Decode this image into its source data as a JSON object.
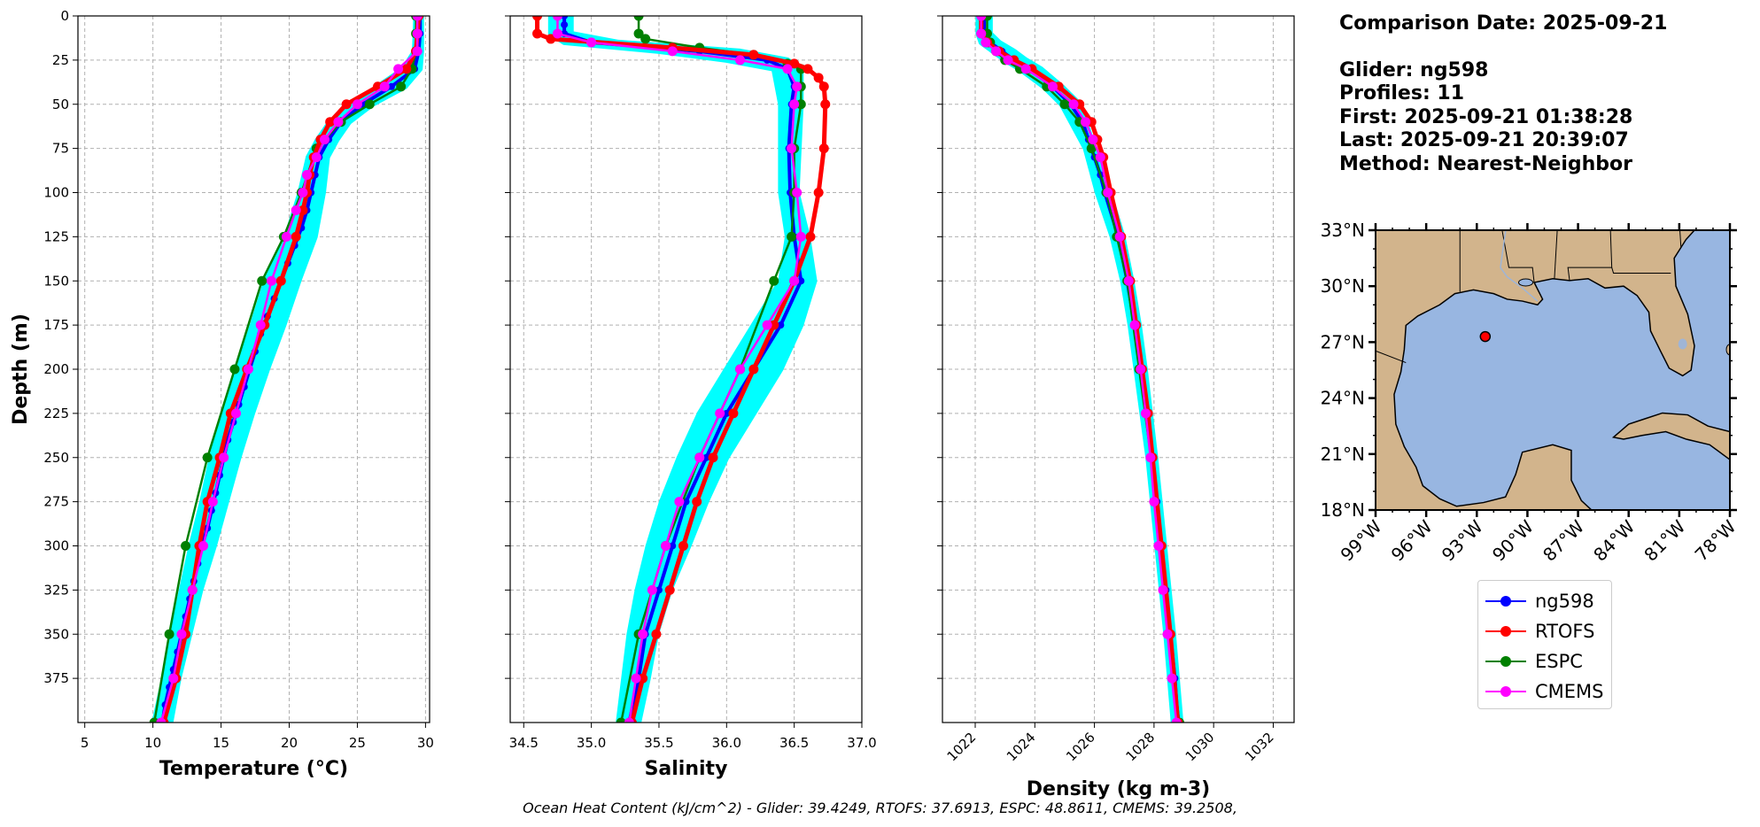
{
  "info": {
    "comparison_date": "Comparison Date: 2025-09-21",
    "glider": "Glider: ng598",
    "profiles": "Profiles: 11",
    "first": "First: 2025-09-21 01:38:28",
    "last": "Last: 2025-09-21 20:39:07",
    "method": "Method: Nearest-Neighbor"
  },
  "footer": "Ocean Heat Content (kJ/cm^2) - Glider: 39.4249,  RTOFS: 37.6913,  ESPC: 48.8611,  CMEMS: 39.2508,",
  "legend": [
    {
      "label": "ng598",
      "color": "#0000ff"
    },
    {
      "label": "RTOFS",
      "color": "#ff0000"
    },
    {
      "label": "ESPC",
      "color": "#008000"
    },
    {
      "label": "CMEMS",
      "color": "#ff00ff"
    }
  ],
  "colors": {
    "glider": "#0000ff",
    "glider_range": "#00ffff",
    "rtofs": "#ff0000",
    "espc": "#008000",
    "cmems": "#ff00ff",
    "land": "#d2b48c",
    "ocean": "#98b6e1",
    "grid": "#b0b0b0"
  },
  "chart_data": [
    {
      "type": "line",
      "xlabel": "Temperature (°C)",
      "ylabel": "Depth (m)",
      "xlim": [
        4.5,
        30.3
      ],
      "ylim": [
        400,
        0
      ],
      "xticks": [
        5,
        10,
        15,
        20,
        25,
        30
      ],
      "yticks": [
        0,
        25,
        50,
        75,
        100,
        125,
        150,
        175,
        200,
        225,
        250,
        275,
        300,
        325,
        350,
        375
      ],
      "grid": true,
      "series": [
        {
          "name": "ng598",
          "depth": [
            0,
            10,
            20,
            30,
            40,
            50,
            60,
            70,
            80,
            90,
            100,
            110,
            120,
            130,
            140,
            150,
            160,
            170,
            180,
            190,
            200,
            210,
            220,
            230,
            240,
            250,
            260,
            270,
            280,
            290,
            300,
            310,
            320,
            330,
            340,
            350,
            360,
            370,
            380,
            390,
            400
          ],
          "values": [
            29.6,
            29.6,
            29.5,
            29.2,
            27.5,
            25.4,
            23.8,
            22.9,
            22.2,
            21.9,
            21.6,
            21.3,
            20.9,
            20.4,
            19.9,
            19.4,
            18.9,
            18.4,
            17.9,
            17.5,
            17.1,
            16.7,
            16.3,
            15.9,
            15.5,
            15.2,
            14.9,
            14.6,
            14.3,
            14.0,
            13.6,
            13.3,
            13.0,
            12.7,
            12.4,
            12.1,
            11.8,
            11.5,
            11.2,
            10.9,
            10.7
          ]
        },
        {
          "name": "glider range low",
          "depth": [
            0,
            20,
            30,
            40,
            50,
            60,
            70,
            80,
            100,
            125,
            150,
            175,
            200,
            225,
            250,
            275,
            300,
            325,
            350,
            375,
            400
          ],
          "values": [
            29.3,
            29.2,
            28.4,
            26.5,
            24.6,
            23.0,
            22.1,
            21.4,
            20.8,
            19.8,
            18.3,
            17.3,
            16.2,
            15.2,
            14.3,
            13.6,
            12.8,
            12.1,
            11.4,
            10.8,
            10.1
          ]
        },
        {
          "name": "glider range high",
          "depth": [
            0,
            20,
            30,
            40,
            50,
            60,
            70,
            80,
            100,
            125,
            150,
            175,
            200,
            225,
            250,
            275,
            300,
            325,
            350,
            375,
            400
          ],
          "values": [
            29.7,
            29.7,
            29.6,
            28.5,
            26.1,
            24.4,
            23.5,
            22.8,
            22.5,
            21.9,
            20.7,
            19.6,
            18.4,
            17.3,
            16.3,
            15.4,
            14.5,
            13.5,
            12.7,
            11.9,
            11.3
          ]
        },
        {
          "name": "RTOFS",
          "depth": [
            0,
            10,
            20,
            30,
            40,
            50,
            60,
            70,
            80,
            90,
            100,
            110,
            125,
            150,
            175,
            200,
            225,
            250,
            275,
            300,
            325,
            350,
            375,
            400
          ],
          "values": [
            29.5,
            29.4,
            29.3,
            28.6,
            26.5,
            24.2,
            23.0,
            22.3,
            21.8,
            21.5,
            21.3,
            21.0,
            20.5,
            19.4,
            18.2,
            16.9,
            15.7,
            14.9,
            14.0,
            13.4,
            12.9,
            12.4,
            11.7,
            10.8
          ]
        },
        {
          "name": "ESPC",
          "depth": [
            0,
            10,
            20,
            30,
            40,
            50,
            60,
            70,
            75,
            100,
            125,
            150,
            200,
            250,
            300,
            350,
            400
          ],
          "values": [
            29.3,
            29.3,
            29.3,
            29.0,
            28.2,
            25.9,
            23.8,
            22.6,
            22.0,
            20.9,
            19.6,
            18.0,
            16.0,
            14.0,
            12.4,
            11.2,
            10.1
          ]
        },
        {
          "name": "CMEMS",
          "depth": [
            0,
            10,
            20,
            30,
            40,
            50,
            60,
            70,
            80,
            90,
            100,
            110,
            125,
            150,
            175,
            200,
            225,
            250,
            275,
            300,
            325,
            350,
            375,
            400
          ],
          "values": [
            29.4,
            29.4,
            29.4,
            28.0,
            27.0,
            25.0,
            23.6,
            22.6,
            22.0,
            21.3,
            21.0,
            20.5,
            19.8,
            18.7,
            17.9,
            17.0,
            16.1,
            15.2,
            14.4,
            13.7,
            12.9,
            12.1,
            11.5,
            10.6
          ]
        }
      ]
    },
    {
      "type": "line",
      "xlabel": "Salinity",
      "xlim": [
        34.4,
        37.0
      ],
      "ylim": [
        400,
        0
      ],
      "xticks": [
        34.5,
        35.0,
        35.5,
        36.0,
        36.5,
        37.0
      ],
      "grid": true,
      "series": [
        {
          "name": "ng598",
          "depth": [
            0,
            5,
            10,
            15,
            20,
            25,
            30,
            40,
            50,
            75,
            100,
            125,
            150,
            175,
            200,
            225,
            250,
            275,
            300,
            325,
            350,
            375,
            400
          ],
          "values": [
            34.8,
            34.8,
            34.8,
            35.0,
            35.8,
            36.3,
            36.45,
            36.5,
            36.48,
            36.46,
            36.47,
            36.5,
            36.55,
            36.4,
            36.2,
            36.0,
            35.85,
            35.7,
            35.6,
            35.5,
            35.4,
            35.35,
            35.28
          ]
        },
        {
          "name": "glider range low",
          "depth": [
            0,
            10,
            15,
            20,
            25,
            30,
            50,
            100,
            125,
            150,
            175,
            200,
            225,
            250,
            275,
            300,
            325,
            350,
            375,
            400
          ],
          "values": [
            34.7,
            34.7,
            34.8,
            35.5,
            36.0,
            36.35,
            36.4,
            36.4,
            36.45,
            36.4,
            36.2,
            36.0,
            35.8,
            35.65,
            35.52,
            35.42,
            35.34,
            35.28,
            35.24,
            35.2
          ]
        },
        {
          "name": "glider range high",
          "depth": [
            0,
            10,
            15,
            20,
            25,
            30,
            50,
            100,
            125,
            150,
            175,
            200,
            225,
            250,
            275,
            300,
            325,
            350,
            375,
            400
          ],
          "values": [
            34.85,
            34.85,
            35.2,
            36.1,
            36.45,
            36.55,
            36.55,
            36.52,
            36.6,
            36.65,
            36.55,
            36.4,
            36.2,
            36.0,
            35.85,
            35.72,
            35.58,
            35.48,
            35.42,
            35.35
          ]
        },
        {
          "name": "RTOFS",
          "depth": [
            0,
            10,
            13,
            18,
            22,
            27,
            30,
            35,
            40,
            50,
            75,
            100,
            125,
            150,
            175,
            200,
            225,
            250,
            275,
            300,
            325,
            350,
            375,
            400
          ],
          "values": [
            34.6,
            34.6,
            34.7,
            35.6,
            36.2,
            36.5,
            36.6,
            36.68,
            36.72,
            36.73,
            36.72,
            36.68,
            36.62,
            36.5,
            36.35,
            36.2,
            36.05,
            35.9,
            35.78,
            35.68,
            35.58,
            35.48,
            35.38,
            35.3
          ]
        },
        {
          "name": "ESPC",
          "depth": [
            0,
            10,
            13,
            18,
            22,
            27,
            30,
            40,
            50,
            75,
            100,
            125,
            150,
            200,
            250,
            300,
            350,
            400
          ],
          "values": [
            35.35,
            35.35,
            35.4,
            35.8,
            36.2,
            36.45,
            36.55,
            36.55,
            36.55,
            36.5,
            36.5,
            36.48,
            36.35,
            36.1,
            35.8,
            35.55,
            35.35,
            35.22
          ]
        },
        {
          "name": "CMEMS",
          "depth": [
            0,
            10,
            15,
            20,
            25,
            30,
            40,
            50,
            75,
            100,
            125,
            150,
            175,
            200,
            225,
            250,
            275,
            300,
            325,
            350,
            375,
            400
          ],
          "values": [
            34.75,
            34.75,
            35.0,
            35.6,
            36.1,
            36.45,
            36.52,
            36.5,
            36.48,
            36.52,
            36.55,
            36.5,
            36.3,
            36.1,
            35.95,
            35.8,
            35.65,
            35.55,
            35.45,
            35.38,
            35.33,
            35.28
          ]
        }
      ]
    },
    {
      "type": "line",
      "xlabel": "Density (kg m-3)",
      "xlim": [
        1020.9,
        1032.7
      ],
      "ylim": [
        400,
        0
      ],
      "xticks": [
        1022,
        1024,
        1026,
        1028,
        1030,
        1032
      ],
      "grid": true,
      "series": [
        {
          "name": "ng598",
          "depth": [
            0,
            10,
            15,
            20,
            25,
            30,
            40,
            50,
            60,
            70,
            80,
            90,
            100,
            125,
            150,
            175,
            200,
            225,
            250,
            275,
            300,
            325,
            350,
            375,
            400
          ],
          "values": [
            1022.3,
            1022.3,
            1022.5,
            1022.9,
            1023.3,
            1023.8,
            1024.6,
            1025.2,
            1025.6,
            1025.8,
            1026.0,
            1026.2,
            1026.35,
            1026.8,
            1027.1,
            1027.35,
            1027.55,
            1027.75,
            1027.95,
            1028.1,
            1028.25,
            1028.4,
            1028.55,
            1028.7,
            1028.8
          ]
        },
        {
          "name": "glider range low",
          "depth": [
            0,
            10,
            15,
            20,
            25,
            30,
            40,
            50,
            75,
            100,
            125,
            150,
            175,
            200,
            250,
            300,
            350,
            400
          ],
          "values": [
            1022.1,
            1022.1,
            1022.2,
            1022.6,
            1023.0,
            1023.5,
            1024.3,
            1024.9,
            1025.7,
            1026.1,
            1026.6,
            1026.95,
            1027.2,
            1027.4,
            1027.8,
            1028.1,
            1028.4,
            1028.65
          ]
        },
        {
          "name": "glider range high",
          "depth": [
            0,
            10,
            15,
            20,
            25,
            30,
            40,
            50,
            75,
            100,
            125,
            150,
            175,
            200,
            250,
            300,
            350,
            400
          ],
          "values": [
            1022.5,
            1022.5,
            1022.8,
            1023.3,
            1023.7,
            1024.2,
            1024.9,
            1025.5,
            1026.0,
            1026.5,
            1026.95,
            1027.25,
            1027.5,
            1027.7,
            1028.05,
            1028.35,
            1028.65,
            1028.9
          ]
        },
        {
          "name": "RTOFS",
          "depth": [
            0,
            10,
            15,
            20,
            25,
            30,
            40,
            50,
            60,
            70,
            80,
            100,
            125,
            150,
            175,
            200,
            225,
            250,
            300,
            350,
            400
          ],
          "values": [
            1022.2,
            1022.2,
            1022.4,
            1022.8,
            1023.3,
            1023.9,
            1024.8,
            1025.5,
            1025.9,
            1026.1,
            1026.3,
            1026.55,
            1026.9,
            1027.2,
            1027.4,
            1027.6,
            1027.8,
            1027.95,
            1028.25,
            1028.55,
            1028.8
          ]
        },
        {
          "name": "ESPC",
          "depth": [
            0,
            10,
            15,
            20,
            25,
            30,
            40,
            50,
            60,
            75,
            100,
            125,
            150,
            200,
            250,
            300,
            350,
            400
          ],
          "values": [
            1022.4,
            1022.4,
            1022.5,
            1022.7,
            1023.0,
            1023.5,
            1024.4,
            1025.0,
            1025.5,
            1025.9,
            1026.4,
            1026.75,
            1027.1,
            1027.5,
            1027.9,
            1028.2,
            1028.5,
            1028.85
          ]
        },
        {
          "name": "CMEMS",
          "depth": [
            0,
            10,
            15,
            20,
            25,
            30,
            40,
            50,
            60,
            70,
            80,
            100,
            125,
            150,
            175,
            200,
            225,
            250,
            275,
            300,
            325,
            350,
            375,
            400
          ],
          "values": [
            1022.2,
            1022.2,
            1022.35,
            1022.7,
            1023.1,
            1023.7,
            1024.6,
            1025.3,
            1025.7,
            1025.95,
            1026.2,
            1026.45,
            1026.85,
            1027.15,
            1027.35,
            1027.55,
            1027.72,
            1027.88,
            1028.0,
            1028.15,
            1028.3,
            1028.45,
            1028.6,
            1028.75
          ]
        }
      ]
    },
    {
      "type": "map",
      "region": "Gulf of Mexico",
      "lon_range": [
        -99,
        -78
      ],
      "lat_range": [
        18,
        33
      ],
      "xticks": [
        "99°W",
        "96°W",
        "93°W",
        "90°W",
        "87°W",
        "84°W",
        "81°W",
        "78°W"
      ],
      "yticks": [
        "18°N",
        "21°N",
        "24°N",
        "27°N",
        "30°N",
        "33°N"
      ],
      "glider_position": {
        "lon": -92.5,
        "lat": 27.3
      }
    }
  ]
}
